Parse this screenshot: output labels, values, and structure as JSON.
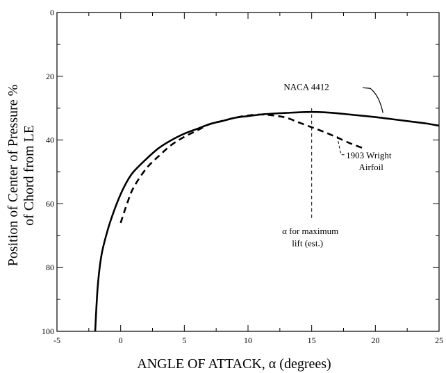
{
  "chart_data": {
    "type": "line",
    "title": "",
    "xlabel": "ANGLE OF ATTACK, α (degrees)",
    "ylabel_line1": "Position of Center of Pressure %",
    "ylabel_line2": "of Chord from  LE",
    "xlim": [
      -5,
      25
    ],
    "ylim": [
      100,
      0
    ],
    "y_inverted": true,
    "grid": false,
    "x_ticks": [
      -5,
      0,
      5,
      10,
      15,
      20,
      25
    ],
    "x_tick_labels": [
      "-5",
      "0",
      "5",
      "10",
      "15",
      "20",
      "25"
    ],
    "y_ticks": [
      0,
      20,
      40,
      60,
      80,
      100
    ],
    "y_tick_labels": [
      "0",
      "20",
      "40",
      "60",
      "80",
      "100"
    ],
    "series": [
      {
        "name": "NACA  4412",
        "style": "solid",
        "x": [
          -2,
          -1.8,
          -1.5,
          -1.0,
          -0.5,
          0,
          0.5,
          1,
          2,
          3,
          4,
          5,
          6,
          7,
          8,
          9,
          10,
          11,
          12,
          13,
          14,
          15,
          16,
          17,
          18,
          19,
          20,
          21,
          22,
          23,
          24,
          25
        ],
        "y": [
          100,
          86,
          76,
          68,
          62,
          57,
          53,
          50,
          46,
          42.5,
          40,
          38,
          36.5,
          35,
          34,
          33,
          32.5,
          32,
          31.7,
          31.5,
          31.3,
          31.2,
          31.3,
          31.6,
          32,
          32.4,
          32.8,
          33.3,
          33.8,
          34.3,
          34.8,
          35.5
        ]
      },
      {
        "name": "1903  Wright Airfoil",
        "style": "dashed",
        "x": [
          0,
          0.5,
          1,
          2,
          3,
          4,
          5,
          6,
          7,
          8,
          9,
          10,
          11,
          12,
          13,
          14,
          15,
          16,
          17,
          18,
          19
        ],
        "y": [
          66,
          60,
          55,
          49,
          45,
          41.5,
          39,
          37,
          35,
          34,
          33,
          32.3,
          32,
          32.3,
          33,
          34.5,
          36,
          37.5,
          39.2,
          41,
          42.5
        ]
      }
    ],
    "annotations": {
      "alpha_max_line_x": 15,
      "alpha_max_label_line1": "α  for maximum",
      "alpha_max_label_line2": "lift (est.)",
      "naca_label": "NACA  4412",
      "wright_label_line1": "1903  Wright",
      "wright_label_line2": "Airfoil"
    }
  }
}
